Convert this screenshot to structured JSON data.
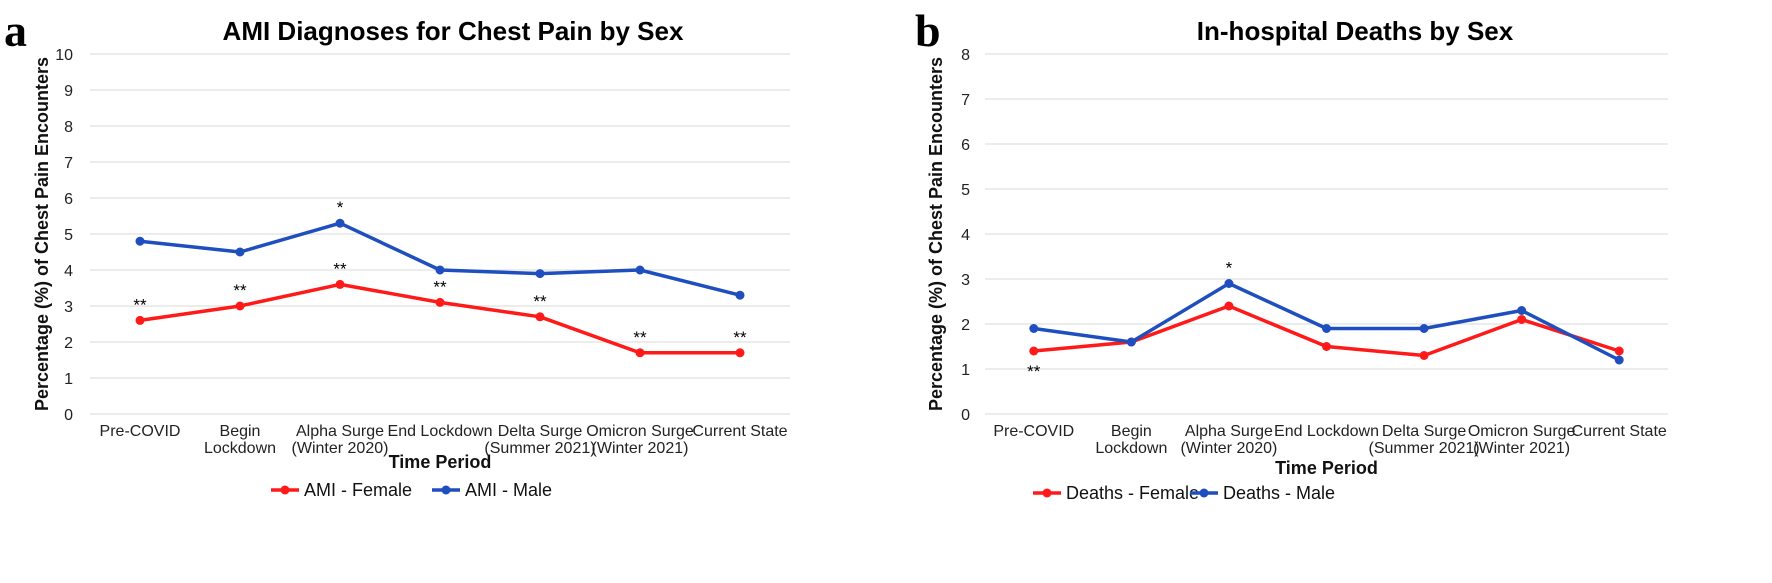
{
  "chart_data": [
    {
      "panel_label": "a",
      "type": "line",
      "title": "AMI Diagnoses for Chest Pain by Sex",
      "xlabel": "Time Period",
      "ylabel": "Percentage (%) of Chest Pain Encounters",
      "categories": [
        [
          "Pre-COVID"
        ],
        [
          "Begin",
          "Lockdown"
        ],
        [
          "Alpha Surge",
          "(Winter 2020)"
        ],
        [
          "End Lockdown"
        ],
        [
          "Delta Surge",
          "(Summer 2021)"
        ],
        [
          "Omicron Surge",
          "(Winter 2021)"
        ],
        [
          "Current State"
        ]
      ],
      "ylim": [
        0,
        10
      ],
      "yticks": [
        0,
        1,
        2,
        3,
        4,
        5,
        6,
        7,
        8,
        9,
        10
      ],
      "grid": true,
      "legend_position": "bottom",
      "series": [
        {
          "name": "AMI - Female",
          "color": "#ff1a1a",
          "values": [
            2.6,
            3.0,
            3.6,
            3.1,
            2.7,
            1.7,
            1.7
          ],
          "annotations": [
            "**",
            "**",
            "**",
            "**",
            "**",
            "**",
            "**"
          ]
        },
        {
          "name": "AMI - Male",
          "color": "#1f4fbf",
          "values": [
            4.8,
            4.5,
            5.3,
            4.0,
            3.9,
            4.0,
            3.3
          ],
          "annotations": [
            "",
            "",
            "*",
            "",
            "",
            "",
            ""
          ]
        }
      ]
    },
    {
      "panel_label": "b",
      "type": "line",
      "title": "In-hospital Deaths by Sex",
      "xlabel": "Time Period",
      "ylabel": "Percentage (%) of Chest Pain Encounters",
      "categories": [
        [
          "Pre-COVID"
        ],
        [
          "Begin",
          "Lockdown"
        ],
        [
          "Alpha Surge",
          "(Winter 2020)"
        ],
        [
          "End Lockdown"
        ],
        [
          "Delta Surge",
          "(Summer 2021)"
        ],
        [
          "Omicron Surge",
          "(Winter 2021)"
        ],
        [
          "Current State"
        ]
      ],
      "ylim": [
        0,
        8
      ],
      "yticks": [
        0,
        1,
        2,
        3,
        4,
        5,
        6,
        7,
        8
      ],
      "grid": true,
      "legend_position": "bottom",
      "series": [
        {
          "name": "Deaths - Female",
          "color": "#ff1a1a",
          "values": [
            1.4,
            1.6,
            2.4,
            1.5,
            1.3,
            2.1,
            1.4
          ],
          "annotations": [
            "**",
            "",
            "",
            "",
            "",
            "",
            ""
          ]
        },
        {
          "name": "Deaths - Male",
          "color": "#1f4fbf",
          "values": [
            1.9,
            1.6,
            2.9,
            1.9,
            1.9,
            2.3,
            1.2
          ],
          "annotations": [
            "",
            "",
            "*",
            "",
            "",
            "",
            ""
          ]
        }
      ]
    }
  ]
}
